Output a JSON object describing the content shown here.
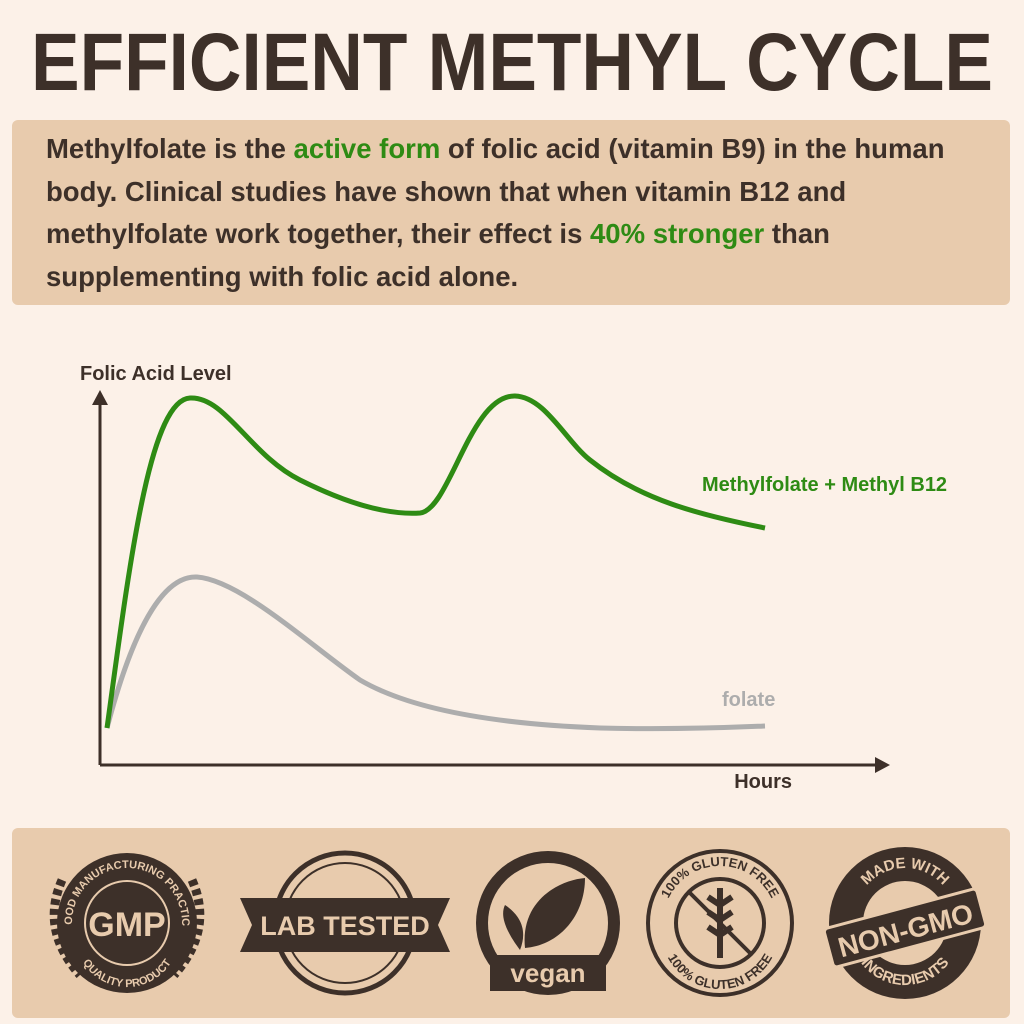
{
  "title": "EFFICIENT METHYL CYCLE",
  "description": {
    "highlight_color": "#2e8b14",
    "segments": [
      {
        "text": "Methylfolate is the ",
        "highlight": false
      },
      {
        "text": "active form",
        "highlight": true
      },
      {
        "text": " of folic acid (vitamin B9) in the human body. Clinical studies have shown that when vitamin B12 and methylfolate work together, their effect is ",
        "highlight": false
      },
      {
        "text": "40% stronger",
        "highlight": true
      },
      {
        "text": " than supplementing with folic acid alone.",
        "highlight": false
      }
    ]
  },
  "graph": {
    "y_label": "Folic Acid Level",
    "x_label": "Hours",
    "lines": [
      {
        "label": "Methylfolate + Methyl B12",
        "color": "#2e8b14"
      },
      {
        "label": "folate",
        "color": "#adadad"
      }
    ]
  },
  "badges": {
    "gmp": {
      "top": "GOOD MANUFACTURING PRACTICE",
      "center": "GMP",
      "bottom": "QUALITY PRODUCT"
    },
    "lab": {
      "center": "LAB TESTED"
    },
    "vegan": {
      "center": "vegan"
    },
    "gluten": {
      "ring": "100% GLUTEN FREE"
    },
    "gmo": {
      "top": "MADE WITH",
      "center": "NON-GMO",
      "bottom": "INGREDIENTS"
    }
  }
}
